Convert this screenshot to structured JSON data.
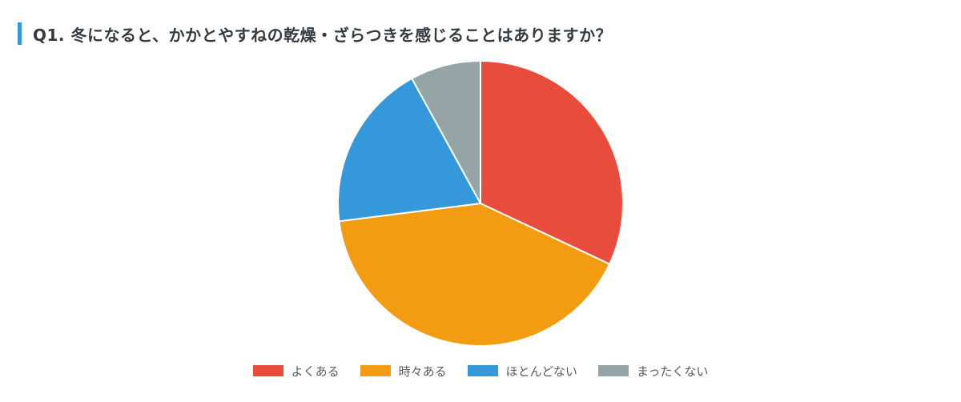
{
  "colors": {
    "accent_bar": "#3498db",
    "slice_stroke": "#ffffff"
  },
  "chart_data": {
    "type": "pie",
    "title": "Q1. 冬になると、かかとやすねの乾燥・ざらつきを感じることはありますか？",
    "legend_position": "bottom",
    "start_angle_deg": 0,
    "direction": "clockwise",
    "slices": [
      {
        "label": "よくある",
        "value": 32,
        "color": "#e74c3c"
      },
      {
        "label": "時々ある",
        "value": 41,
        "color": "#f39c12"
      },
      {
        "label": "ほとんどない",
        "value": 19,
        "color": "#3498db"
      },
      {
        "label": "まったくない",
        "value": 8,
        "color": "#95a5a6"
      }
    ]
  }
}
